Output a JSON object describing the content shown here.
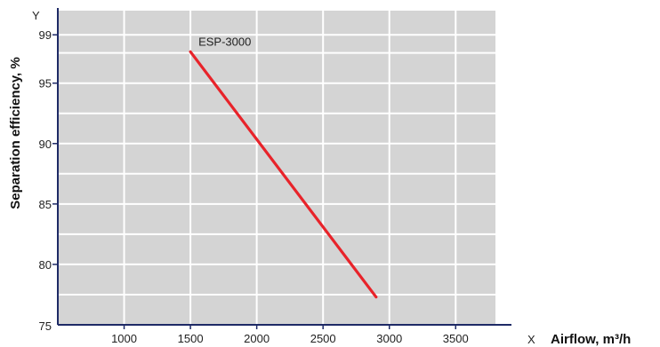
{
  "chart_data": {
    "type": "line",
    "title": "",
    "xlabel": "Airflow, m³/h",
    "ylabel": "Separation efficiency, %",
    "x_axis_letter": "X",
    "y_axis_letter": "Y",
    "xlim": [
      500,
      3800
    ],
    "ylim": [
      75,
      101
    ],
    "x_ticks": [
      1000,
      1500,
      2000,
      2500,
      3000,
      3500
    ],
    "y_ticks": [
      80,
      85,
      90,
      95,
      99
    ],
    "y_origin_label": "75",
    "x_grid": [
      500,
      1000,
      1500,
      2000,
      2500,
      3000,
      3500
    ],
    "y_grid": [
      77.5,
      80,
      82.5,
      85,
      87.5,
      90,
      92.5,
      95,
      97.5,
      99
    ],
    "grid": true,
    "series": [
      {
        "name": "ESP-3000",
        "x": [
          1500,
          2900
        ],
        "y": [
          97.6,
          77.3
        ],
        "color": "#e8232a"
      }
    ],
    "colors": {
      "plot_background": "#d4d4d4",
      "grid": "#ffffff",
      "axis": "#1e2a66"
    }
  }
}
